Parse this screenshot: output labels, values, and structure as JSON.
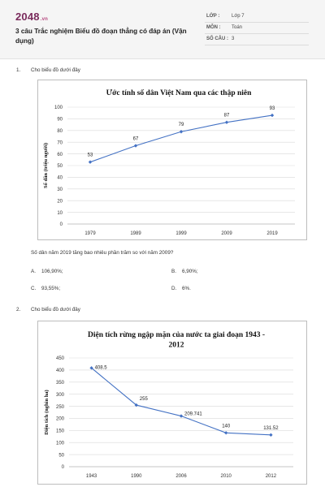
{
  "header": {
    "logo_main": "2048",
    "logo_sub": ".vn",
    "title": "3 câu Trắc nghiệm Biểu đồ đoạn thẳng có đáp án (Vận dụng)",
    "meta": [
      {
        "key": "LỚP :",
        "value": "Lớp 7"
      },
      {
        "key": "MÔN :",
        "value": "Toán"
      },
      {
        "key": "SỐ CÂU :",
        "value": "3"
      }
    ]
  },
  "questions": [
    {
      "number": "1.",
      "intro": "Cho biểu đồ dưới đây",
      "question": "Số dân năm 2019 tăng bao nhiêu phần trăm so với năm 2009?",
      "options": [
        {
          "label": "A.",
          "text": "106,90%;"
        },
        {
          "label": "B.",
          "text": "6,90%;"
        },
        {
          "label": "C.",
          "text": "93,55%;"
        },
        {
          "label": "D.",
          "text": "6%."
        }
      ]
    },
    {
      "number": "2.",
      "intro": "Cho biểu đồ dưới đây"
    }
  ],
  "chart_data": [
    {
      "type": "line",
      "title": "Ước tính số dân Việt Nam qua các thập niên",
      "xlabel": "",
      "ylabel": "Số dân (triệu người)",
      "categories": [
        "1979",
        "1989",
        "1999",
        "2009",
        "2019"
      ],
      "values": [
        53,
        67,
        79,
        87,
        93
      ],
      "data_labels": [
        "53",
        "67",
        "79",
        "87",
        "93"
      ],
      "yticks": [
        "0",
        "10",
        "20",
        "30",
        "40",
        "50",
        "60",
        "70",
        "80",
        "90",
        "100"
      ],
      "ylim": [
        0,
        100
      ],
      "grid": true,
      "color": "#4472c4"
    },
    {
      "type": "line",
      "title": "Diện tích rừng ngập mặn của nước ta giai đoạn 1943 - 2012",
      "title_lines": [
        "Diện tích rừng ngập mặn của nước ta giai đoạn 1943 -",
        "2012"
      ],
      "xlabel": "",
      "ylabel": "Diện tích (nghìn ha)",
      "categories": [
        "1943",
        "1990",
        "2006",
        "2010",
        "2012"
      ],
      "values": [
        408.5,
        255,
        209.741,
        140,
        131.52
      ],
      "data_labels": [
        "408.5",
        "255",
        "209.741",
        "140",
        "131.52"
      ],
      "yticks": [
        "0",
        "50",
        "100",
        "150",
        "200",
        "250",
        "300",
        "350",
        "400",
        "450"
      ],
      "ylim": [
        0,
        450
      ],
      "grid": true,
      "color": "#4472c4"
    }
  ]
}
